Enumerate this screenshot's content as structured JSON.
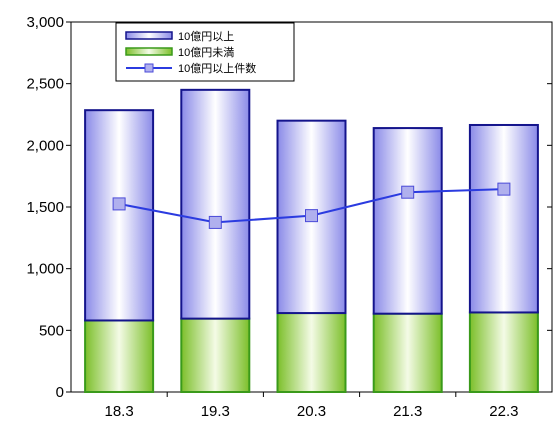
{
  "chart_data": {
    "type": "bar",
    "stacked": true,
    "categories": [
      "18.3",
      "19.3",
      "20.3",
      "21.3",
      "22.3"
    ],
    "series": [
      {
        "name": "10億円未満",
        "kind": "bar",
        "values": [
          580,
          595,
          640,
          635,
          645
        ],
        "color": "#8cc63f"
      },
      {
        "name": "10億円以上",
        "kind": "bar",
        "values": [
          1705,
          1855,
          1560,
          1505,
          1520
        ],
        "color": "#9a9aee"
      },
      {
        "name": "10億円以上件数",
        "kind": "line",
        "axis": "right",
        "values_on_left_scale": [
          1525,
          1375,
          1430,
          1620,
          1645
        ],
        "color": "#2b3be0"
      }
    ],
    "legend": [
      "10億円以上",
      "10億円未満",
      "10億円以上件数"
    ],
    "legend_position": "top-left",
    "y_ticks": [
      "0",
      "500",
      "1,000",
      "1,500",
      "2,000",
      "2,500",
      "3,000"
    ],
    "ylim": [
      0,
      3000
    ],
    "secondary_axis": "right, unlabeled",
    "grid": false
  }
}
